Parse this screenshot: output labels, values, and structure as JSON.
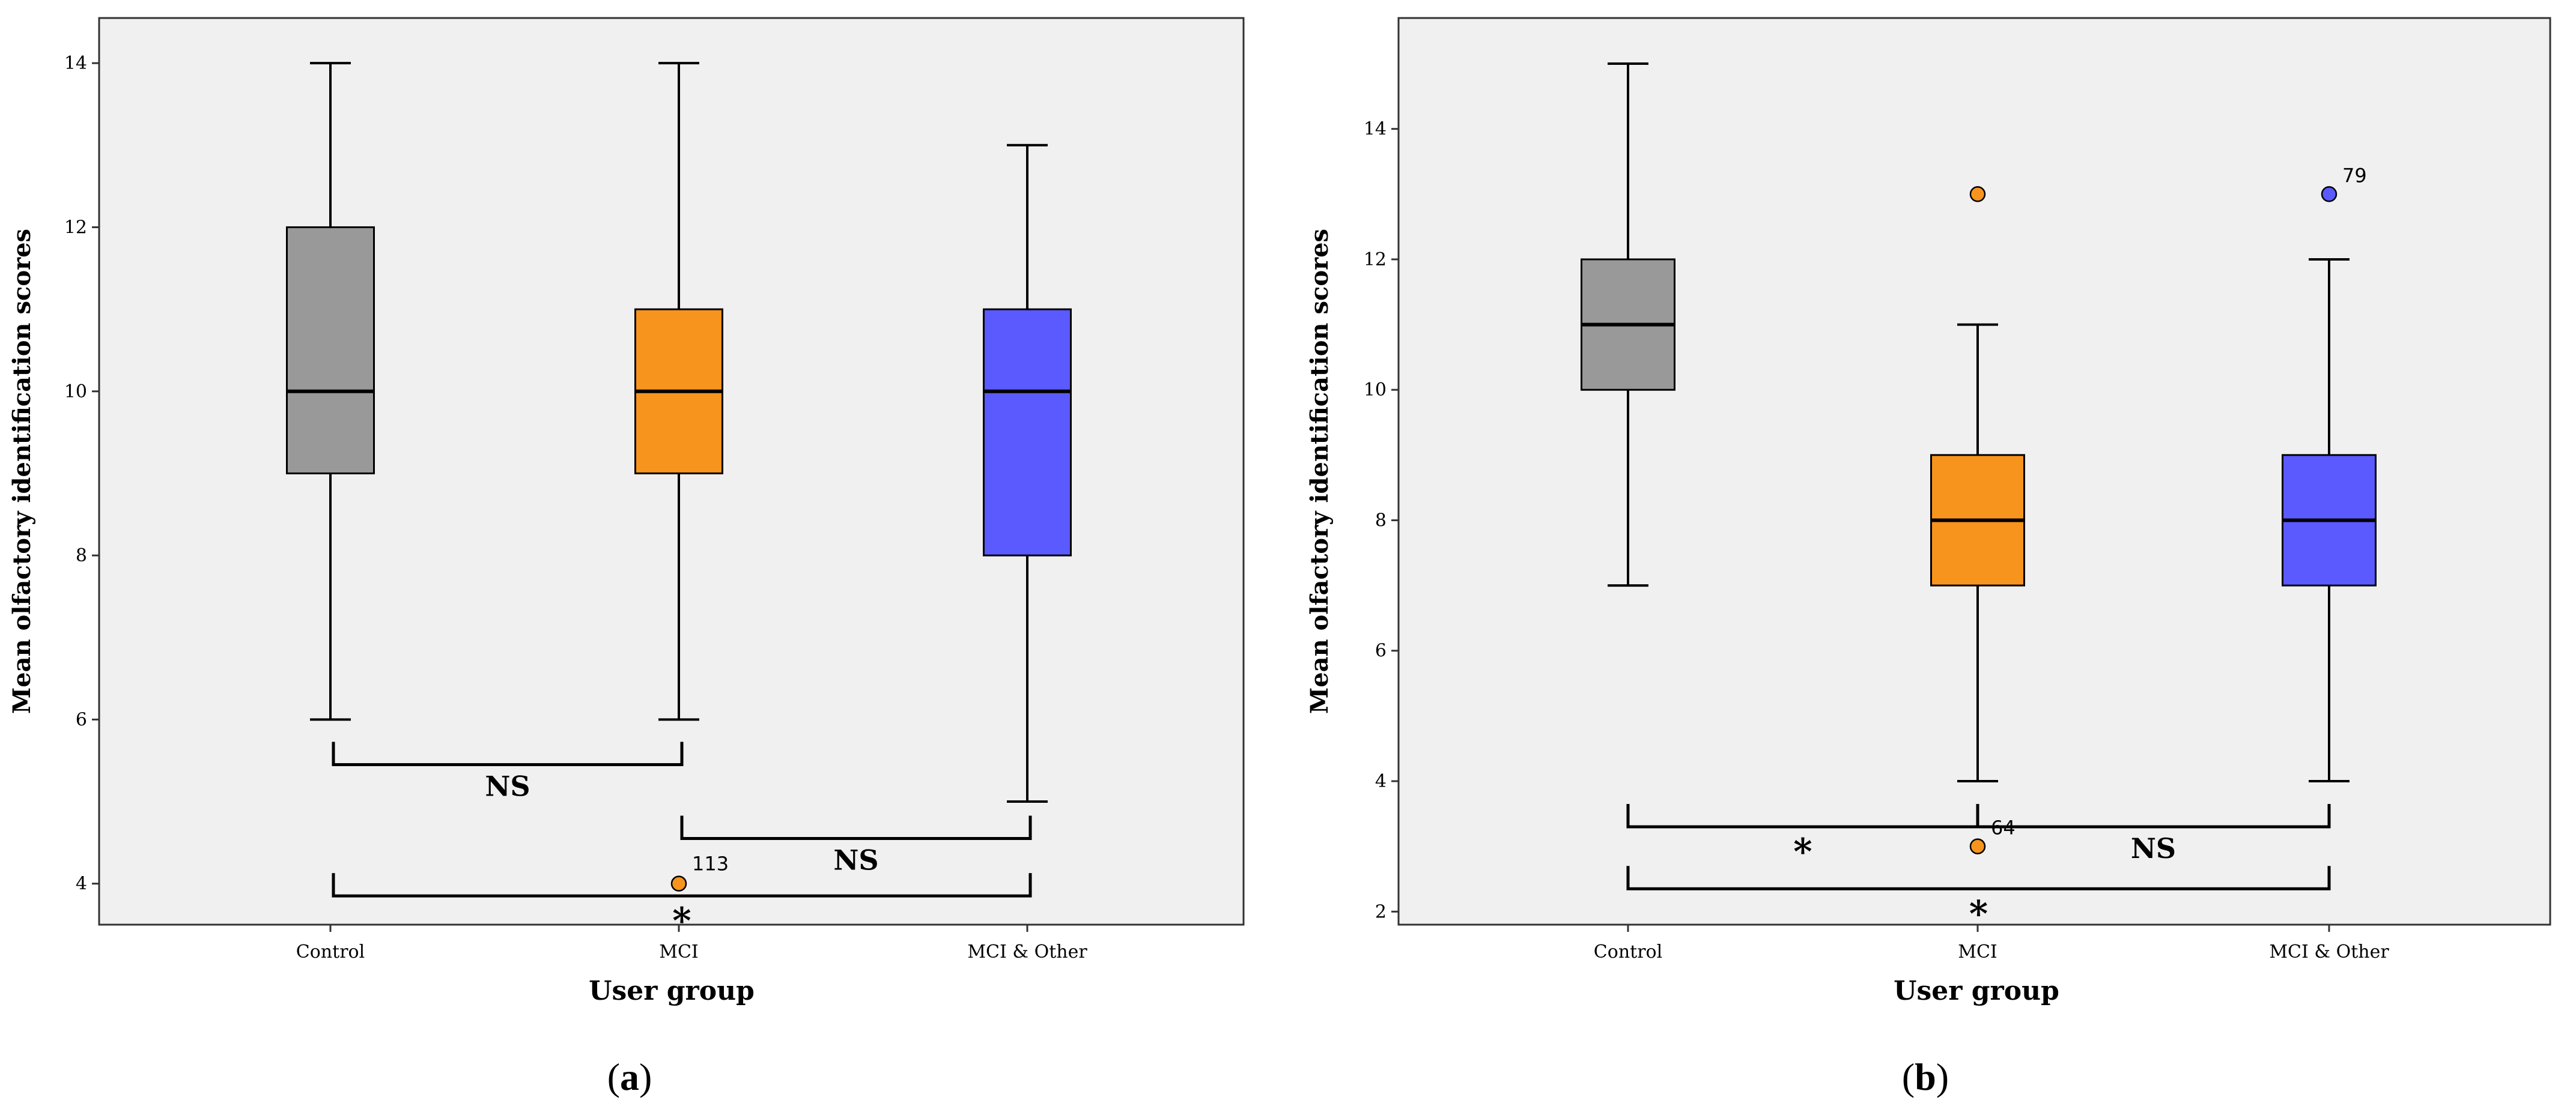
{
  "chart_data": [
    {
      "id": "a",
      "type": "box",
      "caption_letter": "a",
      "xlabel": "User group",
      "ylabel": "Mean olfactory identification scores",
      "ylim": [
        3.5,
        14.55
      ],
      "yticks": [
        4,
        6,
        8,
        10,
        12,
        14
      ],
      "categories": [
        "Control",
        "MCI",
        "MCI & Other"
      ],
      "colors": [
        "#999999",
        "#f7941d",
        "#5a5aff"
      ],
      "boxes": [
        {
          "min": 6,
          "q1": 9,
          "median": 10,
          "q3": 12,
          "max": 14
        },
        {
          "min": 6,
          "q1": 9,
          "median": 10,
          "q3": 11,
          "max": 14
        },
        {
          "min": 5,
          "q1": 8,
          "median": 10,
          "q3": 11,
          "max": 13
        }
      ],
      "outliers": [
        {
          "group": 1,
          "value": 4,
          "label": "113"
        }
      ],
      "significance": [
        {
          "from": 0,
          "to": 1,
          "text": "NS",
          "orient": "down",
          "level": 5.45
        },
        {
          "from": 1,
          "to": 2,
          "text": "NS",
          "orient": "up",
          "level": 4.55
        },
        {
          "from": 0,
          "to": 2,
          "text": "*",
          "orient": "up",
          "level": 3.85
        }
      ]
    },
    {
      "id": "b",
      "type": "box",
      "caption_letter": "b",
      "xlabel": "User group",
      "ylabel": "Mean olfactory identification scores",
      "ylim": [
        1.8,
        15.7
      ],
      "yticks": [
        2,
        4,
        6,
        8,
        10,
        12,
        14
      ],
      "categories": [
        "Control",
        "MCI",
        "MCI & Other"
      ],
      "colors": [
        "#999999",
        "#f7941d",
        "#5a5aff"
      ],
      "boxes": [
        {
          "min": 7,
          "q1": 10,
          "median": 11,
          "q3": 12,
          "max": 15
        },
        {
          "min": 4,
          "q1": 7,
          "median": 8,
          "q3": 9,
          "max": 11
        },
        {
          "min": 4,
          "q1": 7,
          "median": 8,
          "q3": 9,
          "max": 12
        }
      ],
      "outliers": [
        {
          "group": 1,
          "value": 13,
          "label": ""
        },
        {
          "group": 1,
          "value": 3,
          "label": "64"
        },
        {
          "group": 2,
          "value": 13,
          "label": "79"
        }
      ],
      "significance": [
        {
          "from": 0,
          "to": 1,
          "text": "*",
          "orient": "up",
          "level": 3.3
        },
        {
          "from": 1,
          "to": 2,
          "text": "NS",
          "orient": "up",
          "level": 3.3
        },
        {
          "from": 0,
          "to": 2,
          "text": "*",
          "orient": "up",
          "level": 2.35
        }
      ]
    }
  ]
}
